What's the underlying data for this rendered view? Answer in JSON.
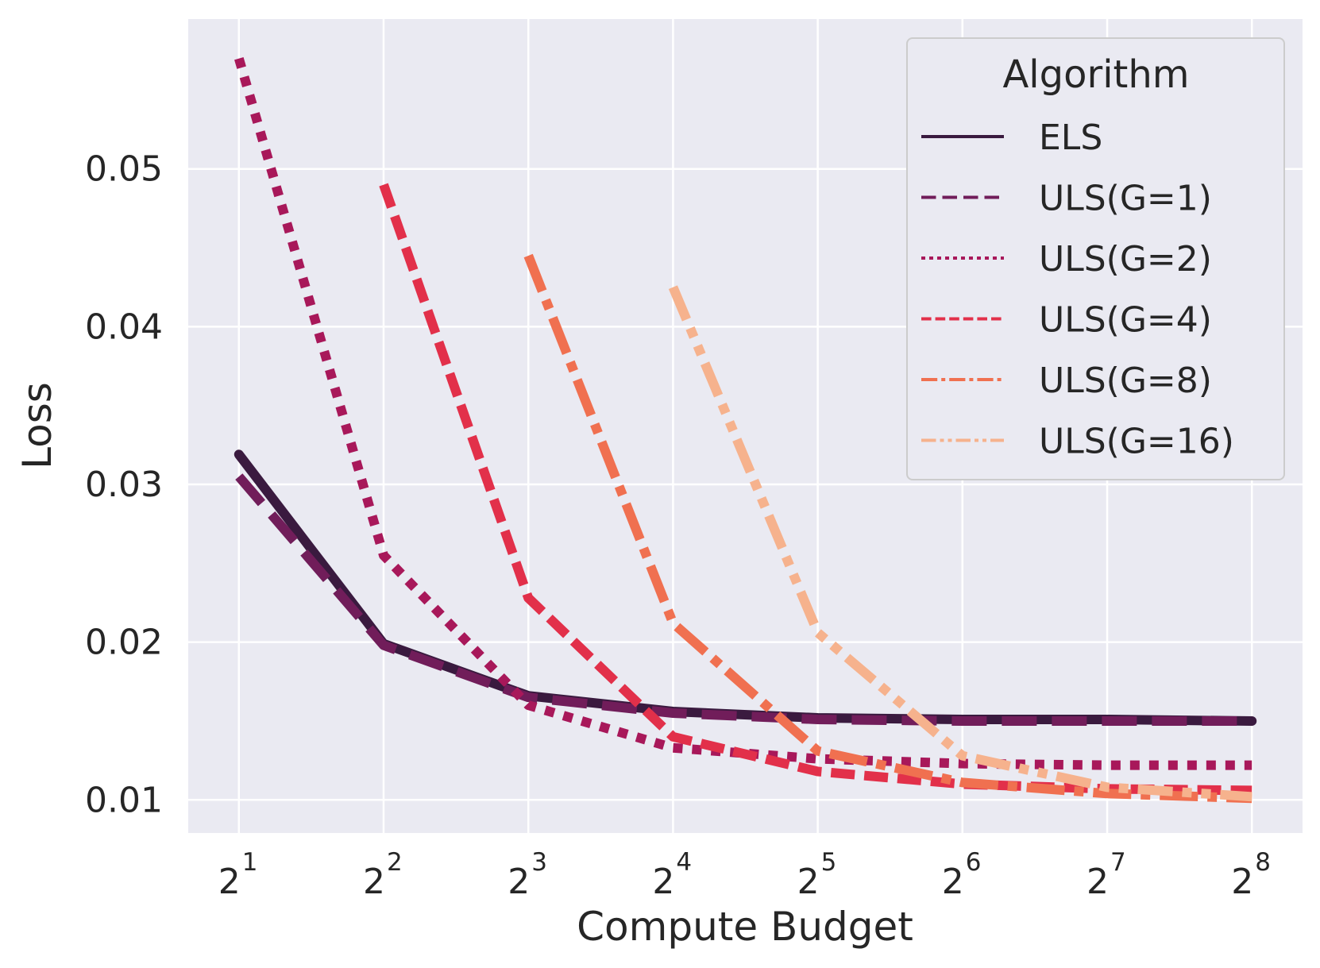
{
  "chart_data": {
    "type": "line",
    "title": "",
    "xlabel": "Compute Budget",
    "ylabel": "Loss",
    "x": [
      1,
      2,
      3,
      4,
      5,
      6,
      7,
      8
    ],
    "x_tick_base": "2",
    "x_tick_exponents": [
      "1",
      "2",
      "3",
      "4",
      "5",
      "6",
      "7",
      "8"
    ],
    "y_ticks": [
      "0.01",
      "0.02",
      "0.03",
      "0.04",
      "0.05"
    ],
    "y_tick_values": [
      0.01,
      0.02,
      0.03,
      0.04,
      0.05
    ],
    "xlim": [
      0.65,
      8.35
    ],
    "ylim": [
      0.0079,
      0.0595
    ],
    "grid": true,
    "legend": {
      "title": "Algorithm",
      "position": "top-right"
    },
    "series": [
      {
        "name": "ELS",
        "style": "solid",
        "color": "#3a1a3f",
        "x": [
          1,
          2,
          3,
          4,
          5,
          6,
          7,
          8
        ],
        "values": [
          0.0319,
          0.0199,
          0.0166,
          0.0156,
          0.0152,
          0.0151,
          0.0151,
          0.015
        ]
      },
      {
        "name": "ULS(G=1)",
        "style": "dashed",
        "color": "#711d5a",
        "x": [
          1,
          2,
          3,
          4,
          5,
          6,
          7,
          8
        ],
        "values": [
          0.0305,
          0.0198,
          0.0165,
          0.0155,
          0.0151,
          0.015,
          0.015,
          0.015
        ]
      },
      {
        "name": "ULS(G=2)",
        "style": "dotted",
        "color": "#a8185a",
        "x": [
          1,
          2,
          3,
          4,
          5,
          6,
          7,
          8
        ],
        "values": [
          0.057,
          0.0255,
          0.016,
          0.0133,
          0.0126,
          0.0123,
          0.0122,
          0.0122
        ]
      },
      {
        "name": "ULS(G=4)",
        "style": "dashed-short",
        "color": "#e2304a",
        "x": [
          2,
          3,
          4,
          5,
          6,
          7,
          8
        ],
        "values": [
          0.049,
          0.0228,
          0.014,
          0.0118,
          0.011,
          0.0107,
          0.0106
        ]
      },
      {
        "name": "ULS(G=8)",
        "style": "dashdot",
        "color": "#f07050",
        "x": [
          3,
          4,
          5,
          6,
          7,
          8
        ],
        "values": [
          0.0445,
          0.0212,
          0.0131,
          0.0111,
          0.0104,
          0.0101
        ]
      },
      {
        "name": "ULS(G=16)",
        "style": "dashdotdot",
        "color": "#f6b28d",
        "x": [
          4,
          5,
          6,
          7,
          8
        ],
        "values": [
          0.0425,
          0.0206,
          0.0128,
          0.0108,
          0.0102
        ]
      }
    ]
  }
}
